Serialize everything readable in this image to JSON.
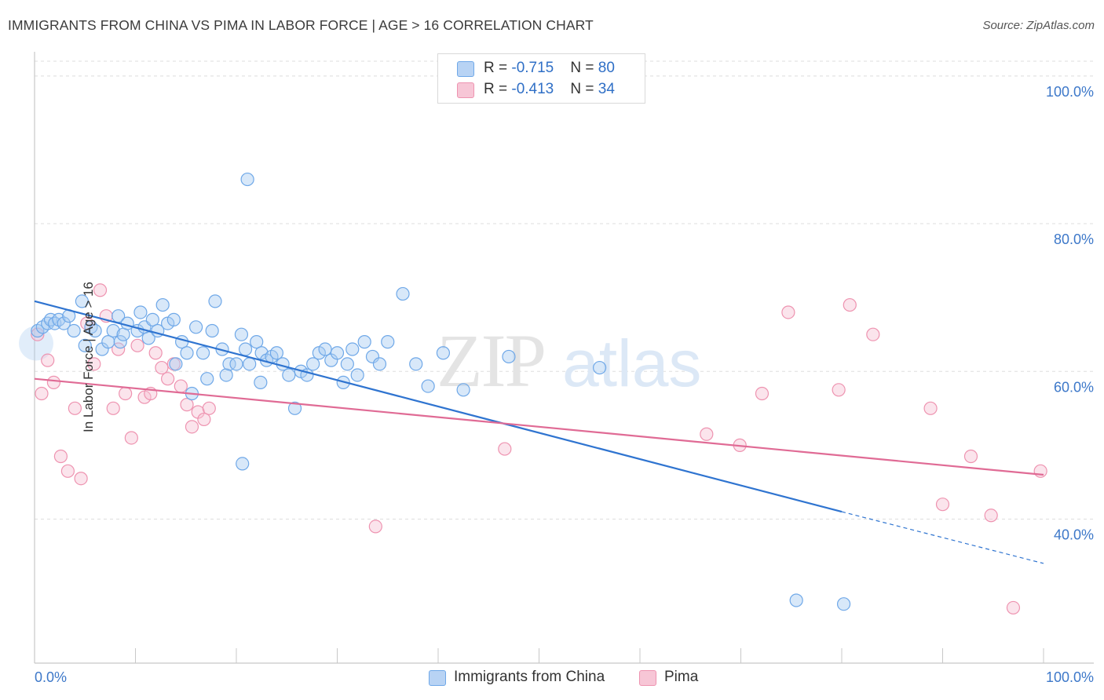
{
  "title": "IMMIGRANTS FROM CHINA VS PIMA IN LABOR FORCE | AGE > 16 CORRELATION CHART",
  "source": "Source: ZipAtlas.com",
  "watermark": {
    "zip": "ZIP",
    "atlas": "atlas"
  },
  "legend": {
    "rows": [
      {
        "r_label": "R = ",
        "r_value": "-0.715",
        "n_label": "N = ",
        "n_value": "80"
      },
      {
        "r_label": "R = ",
        "r_value": "-0.413",
        "n_label": "N = ",
        "n_value": "34"
      }
    ]
  },
  "chart_data": {
    "type": "scatter",
    "title": "IMMIGRANTS FROM CHINA VS PIMA IN LABOR FORCE | AGE > 16 CORRELATION CHART",
    "xlabel": "",
    "ylabel": "In Labor Force | Age > 16",
    "xlim": [
      0,
      100
    ],
    "ylim": [
      20.5,
      102
    ],
    "x_tick_labels": [
      "0.0%",
      "100.0%"
    ],
    "y_ticks": [
      40,
      60,
      80,
      100
    ],
    "y_tick_labels": [
      "40.0%",
      "60.0%",
      "80.0%",
      "100.0%"
    ],
    "grid": "horizontal dashed",
    "legend_position": "top-center",
    "series": [
      {
        "name": "Immigrants from China",
        "color": "#6fa8e8",
        "fill": "#a9cbf2",
        "trend_color": "#2f74d0",
        "trend": {
          "x0": 0,
          "y0": 69.5,
          "x1": 80,
          "y1": 41.0,
          "dashed_to_x": 100,
          "dashed_to_y": 34.0
        },
        "x": [
          0.3,
          0.8,
          1.3,
          1.6,
          2.0,
          2.4,
          2.9,
          3.4,
          3.9,
          4.7,
          5.0,
          5.6,
          6.0,
          6.7,
          7.3,
          7.8,
          8.3,
          8.5,
          8.8,
          9.2,
          10.2,
          10.5,
          10.9,
          11.3,
          11.7,
          12.2,
          12.7,
          13.2,
          13.8,
          14.0,
          14.6,
          15.1,
          15.6,
          16.0,
          16.7,
          17.1,
          17.6,
          17.9,
          18.6,
          19.0,
          19.3,
          20.0,
          20.5,
          20.9,
          21.3,
          22.0,
          22.5,
          23.0,
          23.5,
          24.0,
          24.6,
          25.2,
          25.8,
          26.4,
          27.0,
          27.6,
          28.2,
          28.8,
          29.4,
          30.0,
          30.6,
          31.0,
          32.0,
          32.7,
          33.5,
          34.2,
          35.0,
          36.5,
          37.8,
          39.0,
          40.5,
          42.5,
          47.0,
          56.0,
          75.5,
          80.2,
          20.6,
          21.1,
          22.4,
          31.5
        ],
        "y": [
          65.5,
          66.0,
          66.5,
          67.0,
          66.5,
          67.0,
          66.5,
          67.5,
          65.5,
          69.5,
          63.5,
          66.0,
          65.5,
          63.0,
          64.0,
          65.5,
          67.5,
          64.0,
          65.0,
          66.5,
          65.5,
          68.0,
          66.0,
          64.5,
          67.0,
          65.5,
          69.0,
          66.5,
          67.0,
          61.0,
          64.0,
          62.5,
          57.0,
          66.0,
          62.5,
          59.0,
          65.5,
          69.5,
          63.0,
          59.5,
          61.0,
          61.0,
          65.0,
          63.0,
          61.0,
          64.0,
          62.5,
          61.5,
          62.0,
          62.5,
          61.0,
          59.5,
          55.0,
          60.0,
          59.5,
          61.0,
          62.5,
          63.0,
          61.5,
          62.5,
          58.5,
          61.0,
          59.5,
          64.0,
          62.0,
          61.0,
          64.0,
          70.5,
          61.0,
          58.0,
          62.5,
          57.5,
          62.0,
          60.5,
          29.0,
          28.5,
          47.5,
          86.0,
          58.5,
          63.0
        ]
      },
      {
        "name": "Pima",
        "color": "#ee93b0",
        "fill": "#f6c3d4",
        "trend_color": "#e06b95",
        "trend": {
          "x0": 0,
          "y0": 59.0,
          "x1": 100,
          "y1": 46.0
        },
        "x": [
          0.3,
          0.7,
          1.3,
          1.9,
          2.6,
          3.3,
          4.0,
          4.6,
          5.2,
          5.9,
          6.5,
          7.1,
          7.8,
          8.3,
          9.0,
          9.6,
          10.2,
          10.9,
          11.5,
          12.0,
          12.6,
          13.2,
          13.8,
          14.5,
          15.1,
          15.6,
          16.2,
          16.8,
          17.3,
          33.8,
          46.6,
          66.6,
          69.9,
          72.1,
          74.7,
          79.7,
          80.8,
          83.1,
          88.8,
          90.0,
          92.8,
          94.8,
          97.0,
          99.7
        ],
        "y": [
          65.0,
          57.0,
          61.5,
          58.5,
          48.5,
          46.5,
          55.0,
          45.5,
          66.5,
          61.0,
          71.0,
          67.5,
          55.0,
          63.0,
          57.0,
          51.0,
          63.5,
          56.5,
          57.0,
          62.5,
          60.5,
          59.0,
          61.0,
          58.0,
          55.5,
          52.5,
          54.5,
          53.5,
          55.0,
          39.0,
          49.5,
          51.5,
          50.0,
          57.0,
          68.0,
          57.5,
          69.0,
          65.0,
          55.0,
          42.0,
          48.5,
          40.5,
          28.0,
          46.5
        ],
        "note": "only the first 34 visible points are drawn"
      }
    ]
  },
  "bottom_legend": {
    "items": [
      {
        "label": "Immigrants from China"
      },
      {
        "label": "Pima"
      }
    ]
  }
}
